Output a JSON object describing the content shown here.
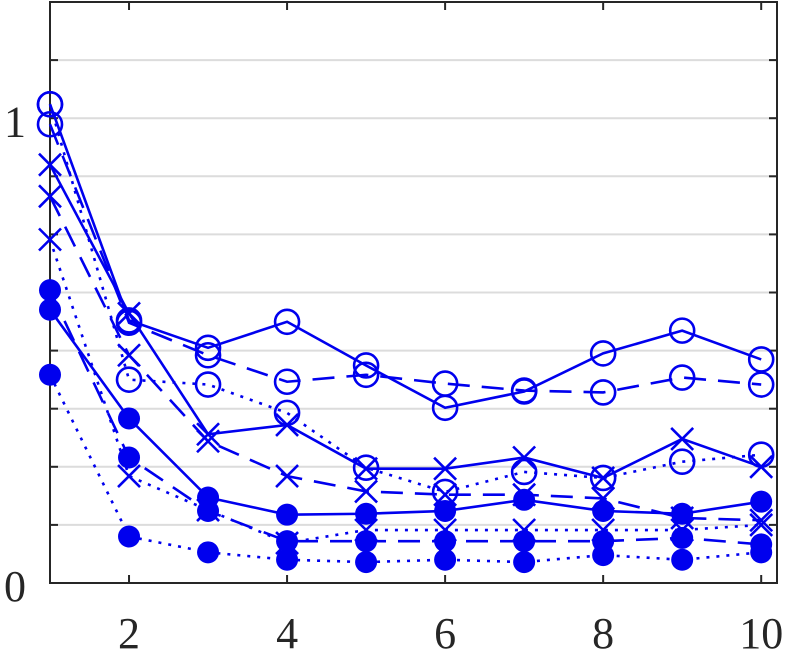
{
  "chart_data": {
    "type": "line",
    "x": [
      1,
      2,
      3,
      4,
      5,
      6,
      7,
      8,
      9,
      10
    ],
    "xlim": [
      1,
      10.2
    ],
    "ylim": [
      0,
      1.25
    ],
    "xticks": [
      2,
      4,
      6,
      8,
      10
    ],
    "yticks": [
      0,
      1
    ],
    "ygrid": [
      0.125,
      0.25,
      0.375,
      0.5,
      0.625,
      0.75,
      0.875,
      1,
      1.125
    ],
    "grid": true,
    "series": [
      {
        "color": "#0000ee",
        "marker": "circle",
        "dash": "solid",
        "values": [
          1.03,
          0.565,
          0.506,
          0.562,
          0.468,
          0.377,
          0.412,
          0.494,
          0.543,
          0.481
        ]
      },
      {
        "color": "#0000ee",
        "marker": "circle",
        "dash": "dashed",
        "values": [
          0.987,
          0.56,
          0.49,
          0.433,
          0.448,
          0.429,
          0.414,
          0.41,
          0.442,
          0.427
        ]
      },
      {
        "color": "#0000ee",
        "marker": "circle",
        "dash": "dotted",
        "values": [
          1.03,
          0.4375,
          0.427,
          0.366,
          0.248,
          0.196,
          0.239,
          0.226,
          0.261,
          0.276
        ]
      },
      {
        "color": "#0000ee",
        "marker": "x",
        "dash": "solid",
        "values": [
          0.9,
          0.58,
          0.32,
          0.34,
          0.246,
          0.246,
          0.27,
          0.226,
          0.31,
          0.25
        ]
      },
      {
        "color": "#0000ee",
        "marker": "x",
        "dash": "dashed",
        "values": [
          0.832,
          0.49,
          0.305,
          0.23,
          0.197,
          0.19,
          0.19,
          0.182,
          0.14,
          0.135
        ]
      },
      {
        "color": "#0000ee",
        "marker": "x",
        "dash": "dotted",
        "values": [
          0.739,
          0.23,
          0.157,
          0.086,
          0.114,
          0.114,
          0.114,
          0.114,
          0.114,
          0.125
        ]
      },
      {
        "color": "#0000ee",
        "marker": "dot",
        "dash": "solid",
        "values": [
          0.588,
          0.354,
          0.184,
          0.147,
          0.149,
          0.155,
          0.179,
          0.155,
          0.149,
          0.175
        ]
      },
      {
        "color": "#0000ee",
        "marker": "dot",
        "dash": "dashed",
        "values": [
          0.63,
          0.27,
          0.155,
          0.09,
          0.09,
          0.09,
          0.09,
          0.09,
          0.097,
          0.083
        ]
      },
      {
        "color": "#0000ee",
        "marker": "dot",
        "dash": "dotted",
        "values": [
          0.448,
          0.1,
          0.066,
          0.05,
          0.045,
          0.05,
          0.045,
          0.06,
          0.05,
          0.066
        ]
      }
    ]
  }
}
